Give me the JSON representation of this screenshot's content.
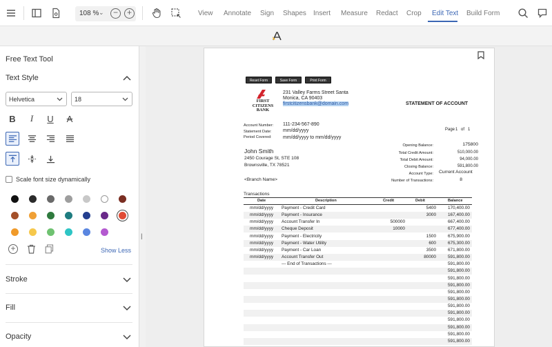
{
  "toolbar": {
    "zoom_value": "108 %",
    "zoom_caret": "⌄",
    "zoom_out": "−",
    "zoom_in": "+",
    "tabs": [
      {
        "label": "View"
      },
      {
        "label": "Annotate"
      },
      {
        "label": "Sign"
      },
      {
        "label": "Shapes"
      },
      {
        "label": "Insert"
      },
      {
        "label": "Measure"
      },
      {
        "label": "Redact"
      },
      {
        "label": "Crop"
      },
      {
        "label": "Edit Text"
      },
      {
        "label": "Build Form"
      }
    ],
    "active_tab": "Edit Text",
    "accent": "#3b66b4"
  },
  "panel": {
    "title": "Free Text Tool",
    "text_style": "Text Style",
    "font": "Helvetica",
    "size": "18",
    "bold": "B",
    "italic": "I",
    "underline": "U",
    "strike": "A",
    "scale_label": "Scale font size dynamically",
    "colors": [
      "#111111",
      "#2b2b2b",
      "#6a6a6a",
      "#9e9e9e",
      "#c8c8c8",
      "#ffffff",
      "#7a2e22",
      "#a4502a",
      "#f0a035",
      "#2f7a3e",
      "#1f7c80",
      "#243f8f",
      "#6a2a8a",
      "#e04b35",
      "#f09a2a",
      "#f6c84c",
      "#6fc271",
      "#2ec5c5",
      "#5a86e0",
      "#b45ad0"
    ],
    "selected_color": "#e04b35",
    "show_less": "Show Less",
    "stroke": "Stroke",
    "fill": "Fill",
    "opacity": "Opacity"
  },
  "document": {
    "buttons": [
      "Reset Form",
      "Save Form",
      "Print Form"
    ],
    "bank_name": [
      "FIRST",
      "CITIZENS",
      "BANK"
    ],
    "bank_address1": "231 Valley Farms Street Santa",
    "bank_address2": "Monica, CA 90403",
    "bank_email": "firstcitizensbank@domain.com",
    "statement_title": "STATEMENT OF ACCOUNT",
    "account_number_label": "Account Number:",
    "account_number": "111-234-567-890",
    "statement_date_label": "Statement Date:",
    "statement_date": "mm/dd/yyyy",
    "period_label": "Period Covered:",
    "period": "mm/dd/yyyy to mm/dd/yyyy",
    "page_label": "Page",
    "page_current": "1",
    "page_of": "of",
    "page_total": "1",
    "customer_name": "John Smith",
    "customer_address1": "2450 Courage St, STE 108",
    "customer_address2": "Brownsville, TX 78521",
    "branch_name": "<Branch Name>",
    "summary": [
      {
        "label": "Opening Balance:",
        "value": "175800"
      },
      {
        "label": "Total Credit Amount:",
        "value": "510,000.00"
      },
      {
        "label": "Total Debit Amount:",
        "value": "94,000.00"
      },
      {
        "label": "Closing Balance:",
        "value": "591,800.00"
      },
      {
        "label": "Account Type:",
        "value": "Current Account"
      },
      {
        "label": "Number of Transactions:",
        "value": "8"
      }
    ],
    "transactions_label": "Transactions",
    "columns": {
      "date": "Date",
      "description": "Description",
      "credit": "Credit",
      "debit": "Debit",
      "balance": "Balance"
    },
    "rows": [
      {
        "date": "mm/dd/yyyy",
        "desc": "Payment - Credit Card",
        "credit": "",
        "debit": "5400",
        "balance": "170,400.00"
      },
      {
        "date": "mm/dd/yyyy",
        "desc": "Payment - Insurance",
        "credit": "",
        "debit": "3000",
        "balance": "167,400.00"
      },
      {
        "date": "mm/dd/yyyy",
        "desc": "Account Transfer In",
        "credit": "500000",
        "debit": "",
        "balance": "667,400.00"
      },
      {
        "date": "mm/dd/yyyy",
        "desc": "Cheque Deposit",
        "credit": "10000",
        "debit": "",
        "balance": "677,400.00"
      },
      {
        "date": "mm/dd/yyyy",
        "desc": "Payment - Electricity",
        "credit": "",
        "debit": "1500",
        "balance": "675,900.00"
      },
      {
        "date": "mm/dd/yyyy",
        "desc": "Payment - Water Utility",
        "credit": "",
        "debit": "600",
        "balance": "675,300.00"
      },
      {
        "date": "mm/dd/yyyy",
        "desc": "Payment - Car Loan",
        "credit": "",
        "debit": "3500",
        "balance": "671,800.00"
      },
      {
        "date": "mm/dd/yyyy",
        "desc": "Account Transfer Out",
        "credit": "",
        "debit": "80000",
        "balance": "591,800.00"
      },
      {
        "date": "",
        "desc": "--- End of Transactions ---",
        "credit": "",
        "debit": "",
        "balance": "591,800.00"
      },
      {
        "date": "",
        "desc": "",
        "credit": "",
        "debit": "",
        "balance": "591,800.00"
      },
      {
        "date": "",
        "desc": "",
        "credit": "",
        "debit": "",
        "balance": "591,800.00"
      },
      {
        "date": "",
        "desc": "",
        "credit": "",
        "debit": "",
        "balance": "591,800.00"
      },
      {
        "date": "",
        "desc": "",
        "credit": "",
        "debit": "",
        "balance": "591,800.00"
      },
      {
        "date": "",
        "desc": "",
        "credit": "",
        "debit": "",
        "balance": "591,800.00"
      },
      {
        "date": "",
        "desc": "",
        "credit": "",
        "debit": "",
        "balance": "591,800.00"
      },
      {
        "date": "",
        "desc": "",
        "credit": "",
        "debit": "",
        "balance": "591,800.00"
      },
      {
        "date": "",
        "desc": "",
        "credit": "",
        "debit": "",
        "balance": "591,800.00"
      },
      {
        "date": "",
        "desc": "",
        "credit": "",
        "debit": "",
        "balance": "591,800.00"
      },
      {
        "date": "",
        "desc": "",
        "credit": "",
        "debit": "",
        "balance": "591,800.00"
      },
      {
        "date": "",
        "desc": "",
        "credit": "",
        "debit": "",
        "balance": "591,800.00"
      }
    ]
  }
}
